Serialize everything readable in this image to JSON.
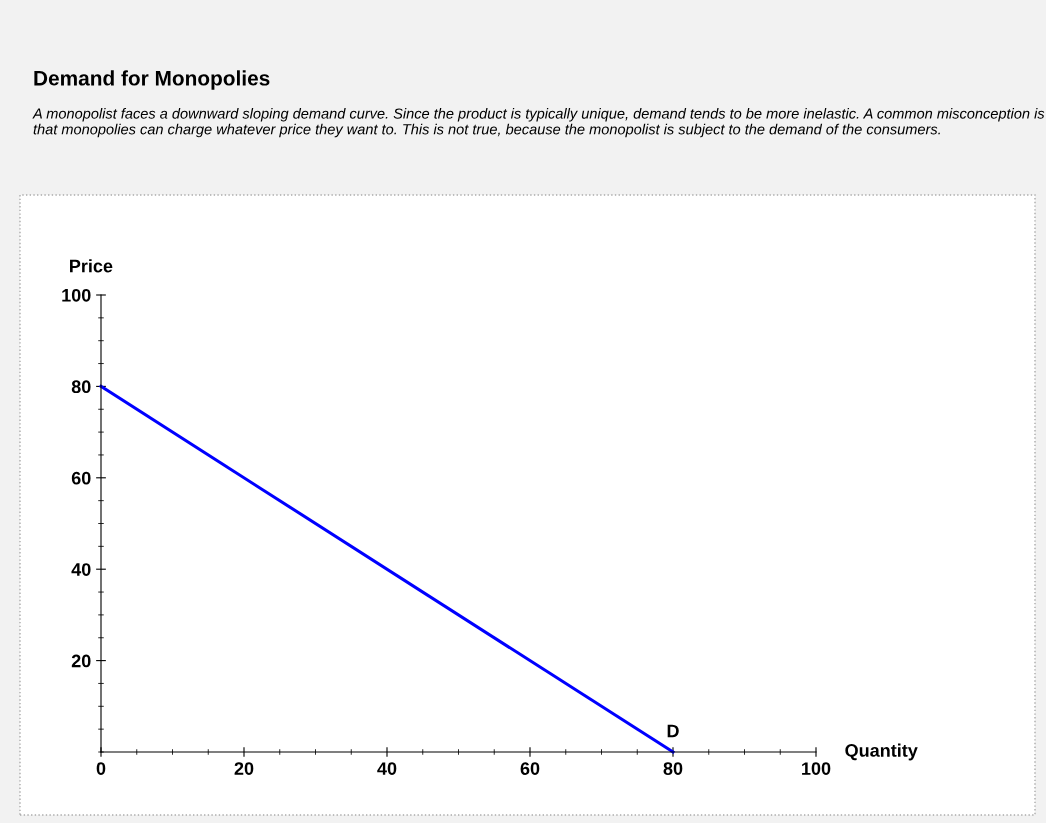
{
  "chart_data": {
    "type": "line",
    "title": "Demand for Monopolies",
    "subtitle": "A monopolist faces a downward sloping demand curve. Since the product is typically unique, demand tends to be more inelastic. A common misconception is that monopolies can charge whatever price they want to. This is not true, because the monopolist is subject to the demand of the consumers.",
    "xlabel": "Quantity",
    "ylabel": "Price",
    "series": [
      {
        "color": "#0000ff",
        "x": [
          0,
          80
        ],
        "values": [
          80,
          0
        ]
      }
    ],
    "xlim": [
      0,
      100
    ],
    "ylim": [
      0,
      100
    ],
    "xticks": [
      0,
      20,
      40,
      60,
      80,
      100
    ],
    "yticks": [
      20,
      40,
      60,
      80,
      100
    ],
    "annotations": [
      {
        "text": "D",
        "x": 80,
        "y": 0
      }
    ],
    "grid": false,
    "marker": "none",
    "line_style": "solid"
  }
}
